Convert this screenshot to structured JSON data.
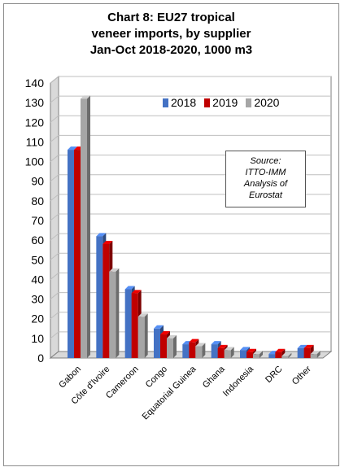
{
  "title_lines": [
    "Chart 8: EU27 tropical",
    "veneer imports, by supplier",
    "Jan-Oct 2018-2020, 1000 m3"
  ],
  "source_lines": [
    "Source:",
    "ITTO-IMM",
    "Analysis of",
    "Eurostat"
  ],
  "colors": {
    "2018": "#4472c4",
    "2019": "#c00000",
    "2020": "#a6a6a6",
    "grid": "#bfbfbf"
  },
  "chart_data": {
    "type": "bar",
    "title": "Chart 8: EU27 tropical veneer imports, by supplier Jan-Oct 2018-2020, 1000 m3",
    "categories": [
      "Gabon",
      "Côte d'Ivoire",
      "Cameroon",
      "Congo",
      "Equatorial Guinea",
      "Ghana",
      "Indonesia",
      "DRC",
      "Other"
    ],
    "series": [
      {
        "name": "2018",
        "values": [
          106,
          62,
          35,
          15,
          7,
          7,
          4,
          2,
          5
        ]
      },
      {
        "name": "2019",
        "values": [
          106,
          58,
          33,
          12,
          8,
          5,
          3,
          3,
          5
        ]
      },
      {
        "name": "2020",
        "values": [
          132,
          44,
          21,
          10,
          6,
          4,
          2,
          1,
          2
        ]
      }
    ],
    "ylim": [
      0,
      140
    ],
    "yticks": [
      0,
      10,
      20,
      30,
      40,
      50,
      60,
      70,
      80,
      90,
      100,
      110,
      120,
      130,
      140
    ],
    "grid": true,
    "legend_position": "top-right",
    "view": "3d-clustered-column"
  }
}
